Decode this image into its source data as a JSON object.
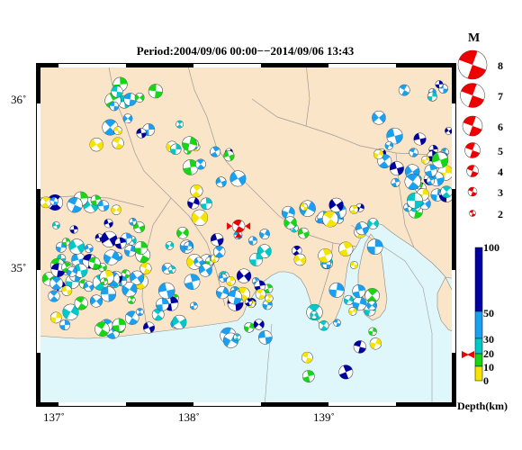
{
  "title": "Period:2004/09/06 00:00−−2014/09/06 13:43",
  "lat_labels": [
    "36˚",
    "35˚"
  ],
  "lon_labels": [
    "137˚",
    "138˚",
    "139˚"
  ],
  "legend": {
    "magnitude_title": "M",
    "magnitudes": [
      "8",
      "7",
      "6",
      "5",
      "4",
      "3",
      "2"
    ],
    "depth_title": "Depth(km)",
    "depth_ticks": [
      "100",
      "50",
      "30",
      "20",
      "10",
      "0"
    ]
  },
  "colors": {
    "land": "#fbe5c8",
    "sea": "#dff7fa",
    "depth_0_10": "#f5e400",
    "depth_10_20": "#17d617",
    "depth_20_30": "#00c8c8",
    "depth_30_50": "#1aa0f0",
    "depth_50_100": "#0000a0",
    "focus_marker": "#ee0000"
  },
  "chart_data": {
    "type": "map",
    "lon_range": [
      136.9,
      139.95
    ],
    "lat_range": [
      34.1,
      36.25
    ],
    "highlight_event": {
      "lon": 138.37,
      "lat": 35.23,
      "depth_km": 20
    }
  }
}
